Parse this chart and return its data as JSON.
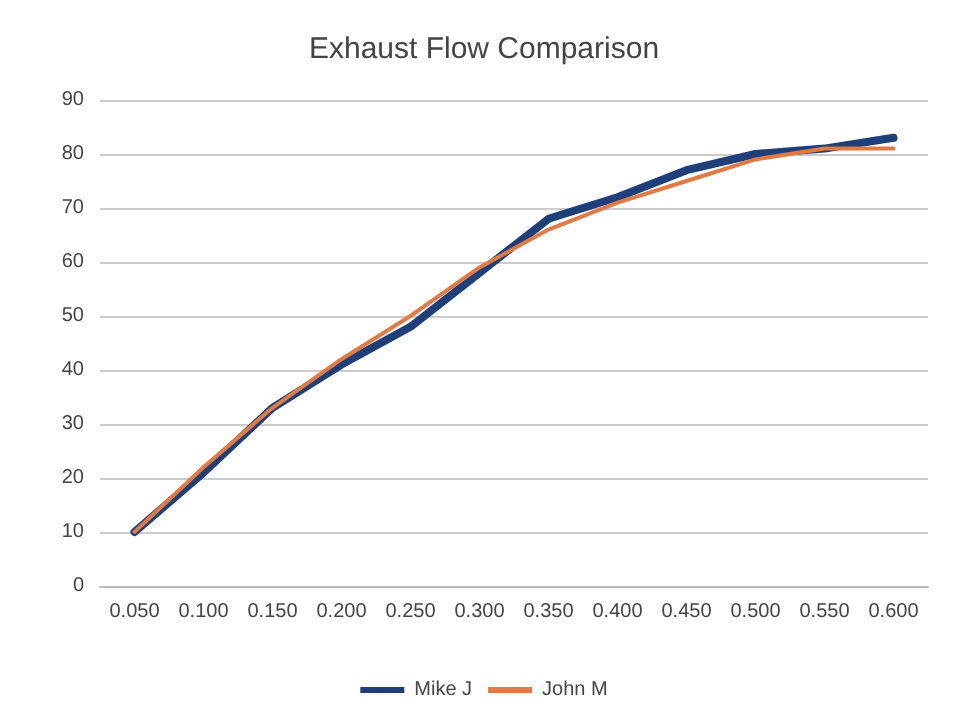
{
  "chart_data": {
    "type": "line",
    "title": "Exhaust Flow Comparison",
    "categories": [
      "0.050",
      "0.100",
      "0.150",
      "0.200",
      "0.250",
      "0.300",
      "0.350",
      "0.400",
      "0.450",
      "0.500",
      "0.550",
      "0.600"
    ],
    "series": [
      {
        "name": "Mike J",
        "color": "#1f3f7a",
        "values": [
          10,
          21,
          33,
          41,
          48,
          58,
          68,
          72,
          77,
          80,
          81,
          83
        ]
      },
      {
        "name": "John M",
        "color": "#e07b45",
        "values": [
          10,
          22,
          33,
          42,
          50,
          59,
          66,
          71,
          75,
          79,
          81,
          81
        ]
      }
    ],
    "ylim": [
      0,
      90
    ],
    "yticks": [
      0,
      10,
      20,
      30,
      40,
      50,
      60,
      70,
      80,
      90
    ],
    "grid": "y",
    "legend": "bottom",
    "marker": "none",
    "line_style": "solid"
  }
}
